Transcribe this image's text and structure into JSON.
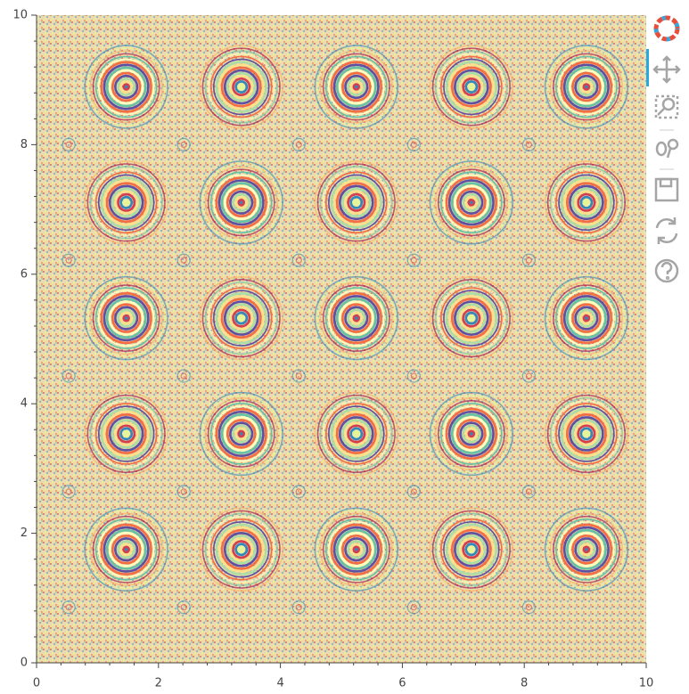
{
  "chart_data": {
    "type": "image",
    "xlim": [
      0,
      10
    ],
    "ylim": [
      0,
      10
    ],
    "xticks": [
      0,
      2,
      4,
      6,
      8,
      10
    ],
    "yticks": [
      0,
      2,
      4,
      6,
      8,
      10
    ],
    "palette": [
      "#9e0142",
      "#d53e4f",
      "#f46d43",
      "#fdae61",
      "#fee08b",
      "#ffffbf",
      "#e6f598",
      "#abdda4",
      "#66c2a5",
      "#3288bd",
      "#5e4fa2"
    ]
  }
}
